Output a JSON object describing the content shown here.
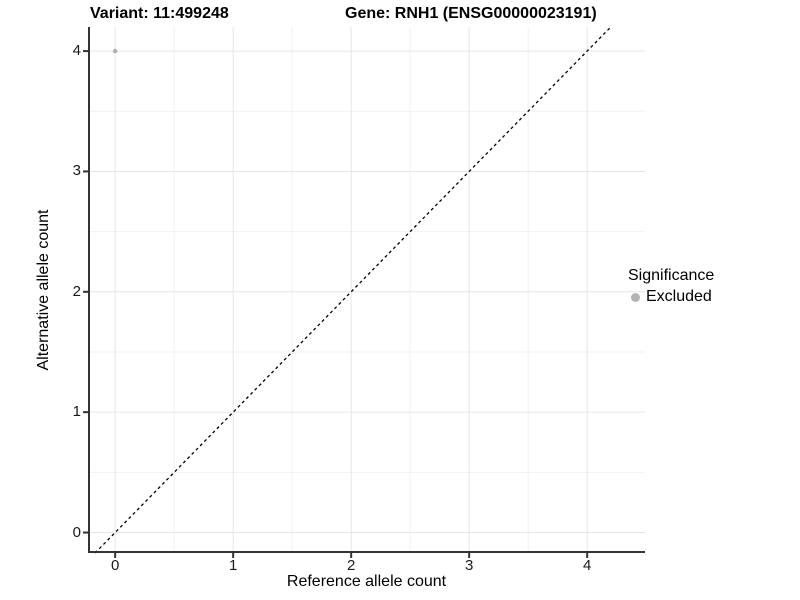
{
  "title": {
    "left": "Variant: 11:499248",
    "right": "Gene: RNH1 (ENSG00000023191)"
  },
  "chart_data": {
    "type": "scatter",
    "title": "Variant: 11:499248    Gene: RNH1 (ENSG00000023191)",
    "xlabel": "Reference allele count",
    "ylabel": "Alternative allele count",
    "xlim": [
      -0.23,
      4.49
    ],
    "ylim": [
      -0.17,
      4.2
    ],
    "xticks": [
      0,
      1,
      2,
      3,
      4
    ],
    "yticks": [
      0,
      1,
      2,
      3,
      4
    ],
    "x_minor": [
      0.5,
      1.5,
      2.5,
      3.5
    ],
    "y_minor": [
      0.5,
      1.5,
      2.5,
      3.5
    ],
    "grid": true,
    "points": [
      {
        "x": 0,
        "y": 4,
        "series": "Excluded"
      }
    ],
    "reference_line": {
      "type": "identity",
      "slope": 1,
      "intercept": 0,
      "style": "dashed"
    },
    "legend": {
      "title": "Significance",
      "position": "right",
      "entries": [
        {
          "label": "Excluded",
          "color": "#b3b3b3"
        }
      ]
    },
    "colors": {
      "point": "#b3b3b3",
      "grid_major": "#e6e6e6",
      "grid_minor": "#f2f2f2",
      "axis": "#333333",
      "ref_line": "#000000"
    }
  }
}
